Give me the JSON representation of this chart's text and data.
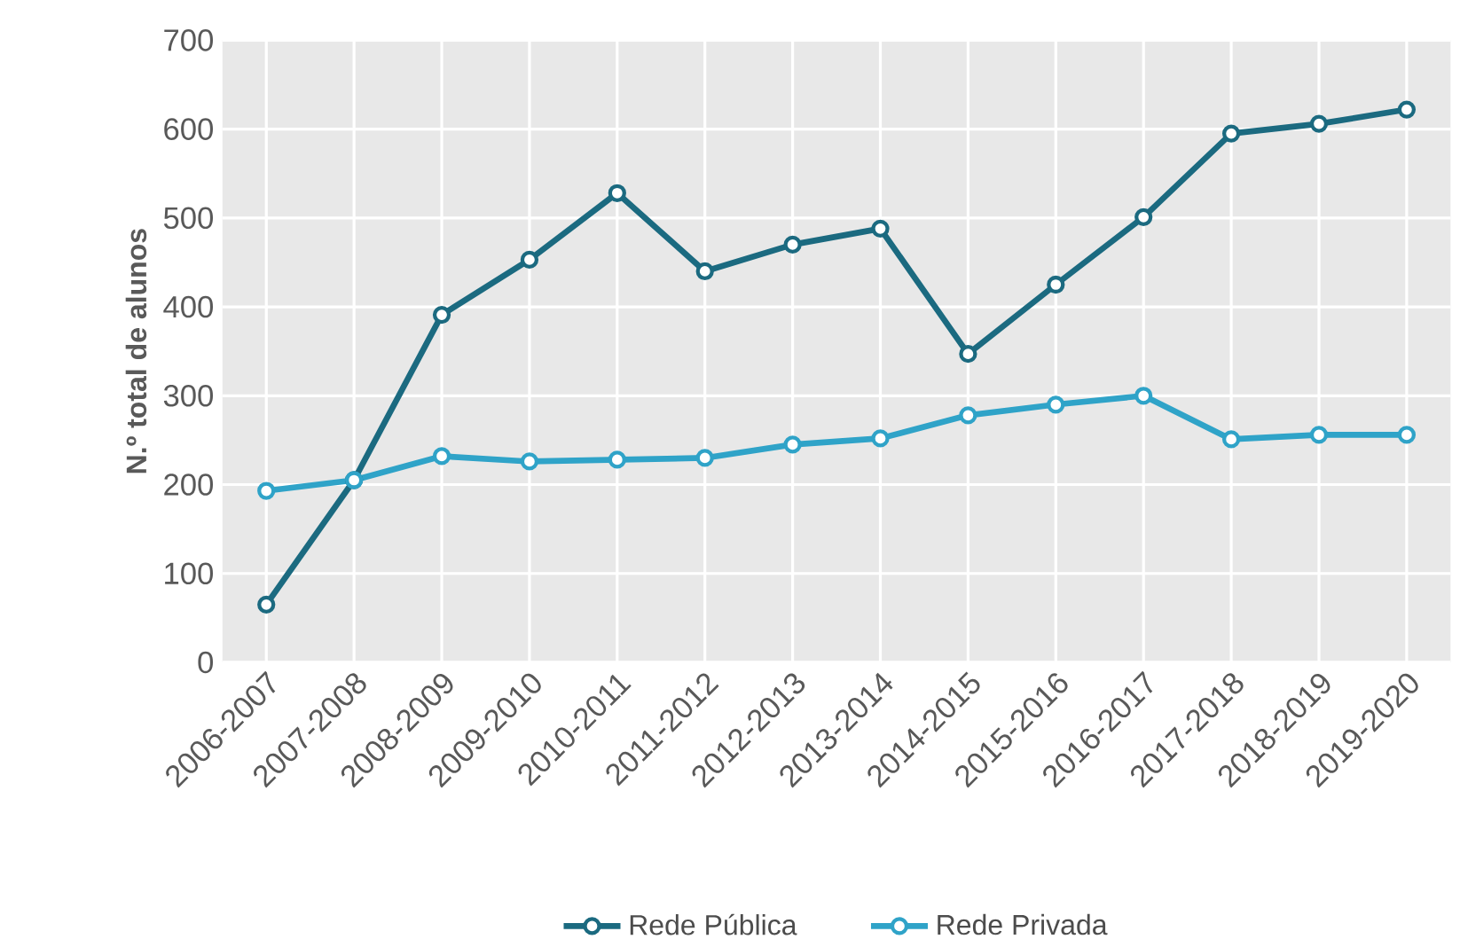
{
  "chart_data": {
    "type": "line",
    "ylabel": "N.º total de alunos",
    "categories": [
      "2006-2007",
      "2007-2008",
      "2008-2009",
      "2009-2010",
      "2010-2011",
      "2011-2012",
      "2012-2013",
      "2013-2014",
      "2014-2015",
      "2015-2016",
      "2016-2017",
      "2017-2018",
      "2018-2019",
      "2019-2020"
    ],
    "series": [
      {
        "name": "Rede Pública",
        "color": "#1b6a80",
        "values": [
          65,
          205,
          391,
          453,
          528,
          440,
          470,
          488,
          347,
          425,
          501,
          595,
          606,
          622
        ]
      },
      {
        "name": "Rede Privada",
        "color": "#2fa3c8",
        "values": [
          193,
          205,
          232,
          226,
          228,
          230,
          245,
          252,
          278,
          290,
          300,
          251,
          256,
          256
        ]
      }
    ],
    "ylim": [
      0,
      700
    ],
    "yticks": [
      0,
      100,
      200,
      300,
      400,
      500,
      600,
      700
    ],
    "grid": true,
    "legend": "bottom",
    "marker": "circle",
    "line_style": "solid"
  }
}
